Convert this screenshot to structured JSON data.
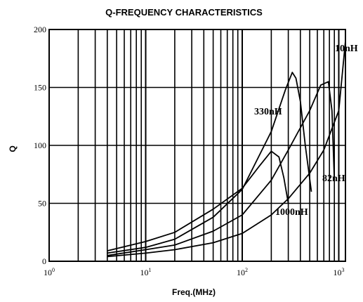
{
  "chart_data": {
    "type": "line",
    "title": "Q-FREQUENCY CHARACTERISTICS",
    "xlabel": "Freq.(MHz)",
    "ylabel": "Q",
    "x_scale": "log",
    "xlim": [
      1,
      1000
    ],
    "ylim": [
      0,
      200
    ],
    "grid": true,
    "x_ticks": [
      {
        "base": "10",
        "exp": "0"
      },
      {
        "base": "10",
        "exp": "1"
      },
      {
        "base": "10",
        "exp": "2"
      },
      {
        "base": "10",
        "exp": "3"
      }
    ],
    "y_ticks": [
      "0",
      "50",
      "100",
      "150",
      "200"
    ],
    "series": [
      {
        "name": "10nH",
        "x": [
          4,
          10,
          20,
          50,
          100,
          200,
          300,
          500,
          700,
          1000,
          1400
        ],
        "y": [
          4,
          7,
          10,
          16,
          24,
          40,
          54,
          76,
          96,
          130,
          190
        ]
      },
      {
        "name": "82nH",
        "x": [
          4,
          10,
          20,
          50,
          100,
          200,
          300,
          500,
          650,
          780,
          850,
          900
        ],
        "y": [
          5,
          10,
          14,
          26,
          40,
          70,
          96,
          130,
          152,
          155,
          130,
          70
        ]
      },
      {
        "name": "330nH",
        "x": [
          4,
          10,
          20,
          50,
          100,
          200,
          280,
          330,
          360,
          400,
          450,
          520
        ],
        "y": [
          7,
          12,
          19,
          38,
          62,
          112,
          148,
          163,
          158,
          138,
          100,
          60
        ]
      },
      {
        "name": "1000nH",
        "x": [
          4,
          10,
          20,
          50,
          100,
          150,
          200,
          240,
          270,
          300
        ],
        "y": [
          9,
          17,
          25,
          45,
          63,
          82,
          95,
          90,
          72,
          50
        ]
      }
    ]
  }
}
